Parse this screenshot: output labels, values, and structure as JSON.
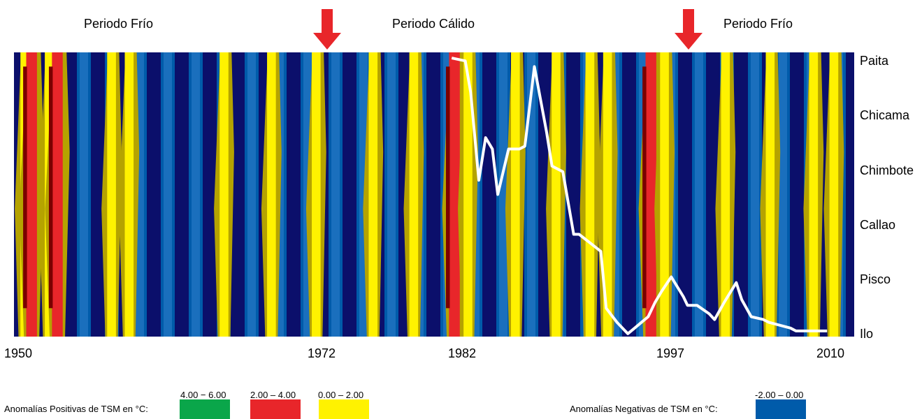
{
  "chart_data": {
    "type": "heatmap",
    "title": "",
    "xlabel": "",
    "ylabel": "",
    "x_start": 1950,
    "x_end": 2012,
    "x_ticks": [
      {
        "value": 1950,
        "label": "1950"
      },
      {
        "value": 1972,
        "label": "1972"
      },
      {
        "value": 1982,
        "label": "1982"
      },
      {
        "value": 1997,
        "label": "1997"
      },
      {
        "value": 2010,
        "label": "2010"
      }
    ],
    "stations": [
      "Paita",
      "Chicama",
      "Chimbote",
      "Callao",
      "Pisco",
      "Ilo"
    ],
    "periods": [
      {
        "label": "Periodo Frío"
      },
      {
        "label": "Periodo Cálido"
      },
      {
        "label": "Periodo Frío"
      }
    ],
    "arrows": [
      {
        "year": 1972,
        "color": "#e8262a"
      },
      {
        "year": 1997.5,
        "color": "#e8262a"
      }
    ],
    "colors": {
      "anom_4_6": "#0aa64a",
      "anom_2_4": "#e8262a",
      "anom_0_2": "#fff200",
      "anom_0_2_shade": "#b5a300",
      "anom_2_4_shade": "#7a0000",
      "anom_neg": "#005baa",
      "anom_neg_deep": "#0b0f6b",
      "line": "#ffffff"
    },
    "warm_bands": [
      {
        "year": 1950.8,
        "level": 1
      },
      {
        "year": 1951.3,
        "level": 2
      },
      {
        "year": 1952.6,
        "level": 1
      },
      {
        "year": 1953.2,
        "level": 2
      },
      {
        "year": 1957.2,
        "level": 1
      },
      {
        "year": 1958.5,
        "level": 1
      },
      {
        "year": 1965.5,
        "level": 1
      },
      {
        "year": 1969.0,
        "level": 1
      },
      {
        "year": 1972.3,
        "level": 1
      },
      {
        "year": 1976.5,
        "level": 1
      },
      {
        "year": 1979.5,
        "level": 1
      },
      {
        "year": 1982.5,
        "level": 2
      },
      {
        "year": 1983.5,
        "level": 1
      },
      {
        "year": 1987.0,
        "level": 1
      },
      {
        "year": 1990.0,
        "level": 1
      },
      {
        "year": 1992.5,
        "level": 1
      },
      {
        "year": 1993.8,
        "level": 1
      },
      {
        "year": 1997.0,
        "level": 2
      },
      {
        "year": 1998.0,
        "level": 1
      },
      {
        "year": 2002.5,
        "level": 1
      },
      {
        "year": 2005.8,
        "level": 1
      },
      {
        "year": 2009.0,
        "level": 1
      },
      {
        "year": 2010.5,
        "level": 1
      }
    ],
    "series": [
      {
        "x": [
          1982.3,
          1983.3,
          1983.7,
          1984.3,
          1984.8,
          1985.3,
          1985.7,
          1986.5,
          1987.3,
          1987.7,
          1988.4,
          1989.3,
          1989.7,
          1990.5,
          1991.3,
          1991.7,
          1992.5,
          1993.3,
          1993.7,
          1994.5,
          1995.3,
          1995.8,
          1996.8,
          1997.3,
          1997.8,
          1998.5,
          1999.4,
          1999.7,
          2000.4,
          2001.3,
          2001.7,
          2002.4,
          2003.3,
          2003.7,
          2004.4,
          2005.3,
          2005.7,
          2006.5,
          2007.3,
          2007.7,
          2008.5,
          2009.3,
          2010.0
        ],
        "values": [
          0.98,
          0.97,
          0.86,
          0.55,
          0.7,
          0.66,
          0.5,
          0.66,
          0.66,
          0.67,
          0.95,
          0.72,
          0.6,
          0.58,
          0.36,
          0.36,
          0.33,
          0.3,
          0.1,
          0.05,
          0.01,
          0.03,
          0.07,
          0.12,
          0.16,
          0.21,
          0.14,
          0.11,
          0.11,
          0.08,
          0.06,
          0.12,
          0.19,
          0.13,
          0.07,
          0.06,
          0.05,
          0.04,
          0.03,
          0.02,
          0.02,
          0.02,
          0.02
        ]
      }
    ],
    "legend": [
      {
        "label": "4.00 − 6.00",
        "color": "#0aa64a"
      },
      {
        "label": "2.00 – 4.00",
        "color": "#e8262a"
      },
      {
        "label": "0.00 – 2.00",
        "color": "#fff200"
      },
      {
        "label": "-2.00 – 0.00",
        "color": "#005baa"
      }
    ],
    "legend_titles": {
      "positive": "Anomalías Positivas de TSM en °C:",
      "negative": "Anomalías Negativas de TSM en °C:"
    }
  }
}
